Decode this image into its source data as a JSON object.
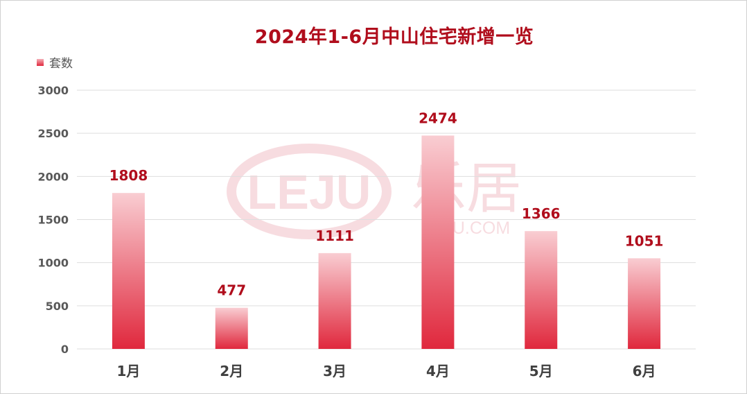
{
  "chart_data": {
    "type": "bar",
    "title": "2024年1-6月中山住宅新增一览",
    "categories": [
      "1月",
      "2月",
      "3月",
      "4月",
      "5月",
      "6月"
    ],
    "series": [
      {
        "name": "套数",
        "values": [
          1808,
          477,
          1111,
          2474,
          1366,
          1051
        ]
      }
    ],
    "ylim": [
      0,
      3000
    ],
    "yticks": [
      0,
      500,
      1000,
      1500,
      2000,
      2500,
      3000
    ],
    "grid": true,
    "legend_position": "top-left",
    "colors": {
      "bar_top": "#f9cdd2",
      "bar_bottom": "#e0283d",
      "label": "#b00d1c"
    },
    "watermark": {
      "logo_text": "LEJU",
      "brand_text": "乐居",
      "url_text": "LEJU.COM"
    }
  }
}
